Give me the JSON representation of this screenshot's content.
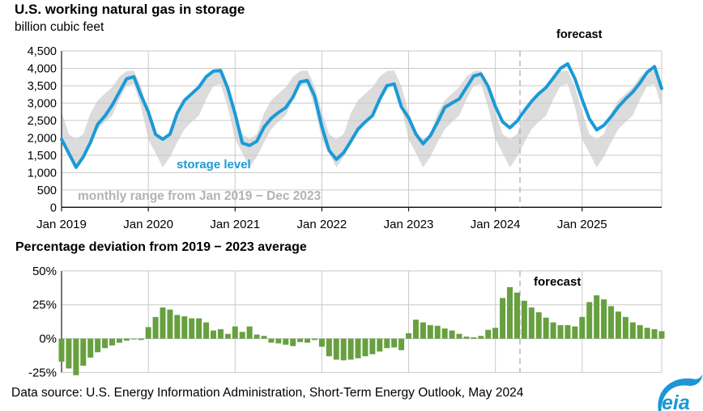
{
  "header": {
    "title": "U.S. working natural gas in storage",
    "subtitle": "billion cubic feet"
  },
  "top_chart": {
    "forecast_label": "forecast",
    "storage_level_label": "storage level",
    "range_label": "monthly range from Jan 2019 − Dec 2023",
    "y_tick_labels": [
      "4,500",
      "4,000",
      "3,500",
      "3,000",
      "2,500",
      "2,000",
      "1,500",
      "1,000",
      "500",
      "0"
    ],
    "x_tick_labels": [
      "Jan 2019",
      "Jan 2020",
      "Jan 2021",
      "Jan 2022",
      "Jan 2023",
      "Jan 2024",
      "Jan 2025"
    ]
  },
  "bottom_chart": {
    "title": "Percentage deviation from 2019 − 2023 average",
    "forecast_label": "forecast",
    "y_tick_labels": [
      "50%",
      "25%",
      "0%",
      "-25%"
    ]
  },
  "footer": {
    "source": "Data source: U.S. Energy Information Administration, Short-Term Energy Outlook, May 2024",
    "logo_text": "eia"
  },
  "colors": {
    "line_blue": "#1b9ad6",
    "band_gray": "#dcdcdc",
    "bar_green": "#67a03f",
    "gridline": "#c9c9c9",
    "axis_black": "#1a1a1a",
    "dashed_gray": "#b4b4b4",
    "legend_gray": "#b3b3b3",
    "logo_blue": "#1c96d4"
  },
  "chart_data": [
    {
      "type": "line",
      "title": "U.S. working natural gas in storage",
      "ylabel": "billion cubic feet",
      "ylim": [
        0,
        4500
      ],
      "y_tick_step": 500,
      "x_start": "Jan 2019",
      "x_end": "Dec 2025",
      "x_frequency": "monthly",
      "forecast_start": "May 2024",
      "grid": true,
      "annotations": [
        "forecast",
        "storage level",
        "monthly range from Jan 2019 − Dec 2023"
      ],
      "series": [
        {
          "name": "storage level",
          "values": [
            1960,
            1560,
            1150,
            1450,
            1870,
            2390,
            2630,
            2940,
            3320,
            3700,
            3760,
            3220,
            2750,
            2100,
            1960,
            2110,
            2710,
            3080,
            3270,
            3460,
            3760,
            3920,
            3940,
            3420,
            2690,
            1850,
            1780,
            1900,
            2310,
            2560,
            2730,
            2870,
            3170,
            3610,
            3650,
            3200,
            2320,
            1640,
            1380,
            1570,
            1900,
            2250,
            2460,
            2640,
            3110,
            3500,
            3550,
            2890,
            2580,
            2110,
            1830,
            2060,
            2450,
            2880,
            3000,
            3120,
            3450,
            3780,
            3840,
            3480,
            2900,
            2460,
            2290,
            2480,
            2780,
            3050,
            3270,
            3450,
            3720,
            4000,
            4130,
            3700,
            3100,
            2550,
            2230,
            2360,
            2610,
            2890,
            3120,
            3320,
            3580,
            3890,
            4050,
            3420
          ]
        },
        {
          "name": "monthly range max (Jan 2019 − Dec 2023, repeated each year)",
          "values_by_calendar_month": [
            2750,
            2110,
            1960,
            2110,
            2710,
            3080,
            3270,
            3460,
            3760,
            3920,
            3940,
            3480
          ]
        },
        {
          "name": "monthly range min (Jan 2019 − Dec 2023, repeated each year)",
          "values_by_calendar_month": [
            1960,
            1560,
            1150,
            1450,
            1870,
            2250,
            2460,
            2640,
            3110,
            3500,
            3550,
            2890
          ]
        }
      ]
    },
    {
      "type": "bar",
      "title": "Percentage deviation from 2019 − 2023 average",
      "unit": "%",
      "ylim": [
        -25,
        50
      ],
      "y_tick_step": 25,
      "x_start": "Jan 2019",
      "x_end": "Dec 2025",
      "x_frequency": "monthly",
      "forecast_start": "May 2024",
      "grid": true,
      "values": [
        -17,
        -22,
        -27,
        -20,
        -14,
        -10,
        -7,
        -5,
        -3,
        -1.5,
        -0.5,
        -1,
        8.5,
        16,
        23,
        21.5,
        17.5,
        16.5,
        15,
        15,
        12,
        6,
        7,
        3.5,
        9,
        5,
        9,
        3,
        2,
        -3,
        -3.5,
        -4.5,
        -5.5,
        -2.5,
        -3,
        -1,
        -6,
        -13,
        -15.5,
        -16,
        -15.5,
        -14.5,
        -13,
        -11.5,
        -9.5,
        -7,
        -6.5,
        -8.5,
        4,
        14,
        12,
        10,
        9.5,
        7.5,
        6,
        3.5,
        1.5,
        1,
        2,
        6.5,
        8,
        30,
        38,
        34,
        28,
        23,
        19.5,
        15.5,
        12,
        10,
        10,
        9,
        16,
        27,
        32,
        29,
        24,
        20,
        16,
        12,
        10,
        8,
        7,
        5.5
      ]
    }
  ]
}
